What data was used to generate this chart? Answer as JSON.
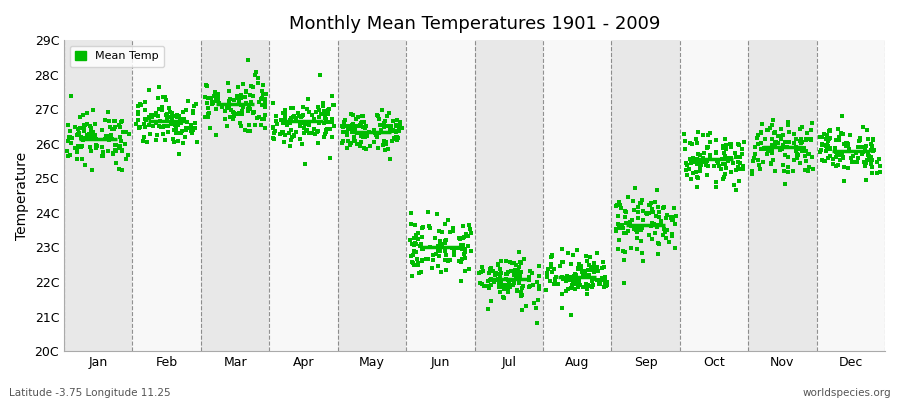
{
  "title": "Monthly Mean Temperatures 1901 - 2009",
  "ylabel": "Temperature",
  "xlabel_bottom_left": "Latitude -3.75 Longitude 11.25",
  "xlabel_bottom_right": "worldspecies.org",
  "background_color": "#ffffff",
  "plot_bg_color": "#ffffff",
  "band_color_light": "#e8e8e8",
  "band_color_dark": "#f8f8f8",
  "ytick_labels": [
    "20C",
    "21C",
    "22C",
    "23C",
    "24C",
    "25C",
    "26C",
    "27C",
    "28C",
    "29C"
  ],
  "ytick_values": [
    20,
    21,
    22,
    23,
    24,
    25,
    26,
    27,
    28,
    29
  ],
  "months": [
    "Jan",
    "Feb",
    "Mar",
    "Apr",
    "May",
    "Jun",
    "Jul",
    "Aug",
    "Sep",
    "Oct",
    "Nov",
    "Dec"
  ],
  "dot_color": "#00bb00",
  "line_color": "#00bb00",
  "mean_temps": [
    26.15,
    26.65,
    27.15,
    26.65,
    26.35,
    23.0,
    22.1,
    22.15,
    23.65,
    25.55,
    25.9,
    25.8
  ],
  "scatter_stds": [
    0.38,
    0.35,
    0.4,
    0.35,
    0.3,
    0.42,
    0.38,
    0.35,
    0.45,
    0.35,
    0.35,
    0.35
  ],
  "ylim": [
    20,
    29
  ],
  "figsize": [
    9.0,
    4.0
  ],
  "dpi": 100,
  "n_years": 109
}
